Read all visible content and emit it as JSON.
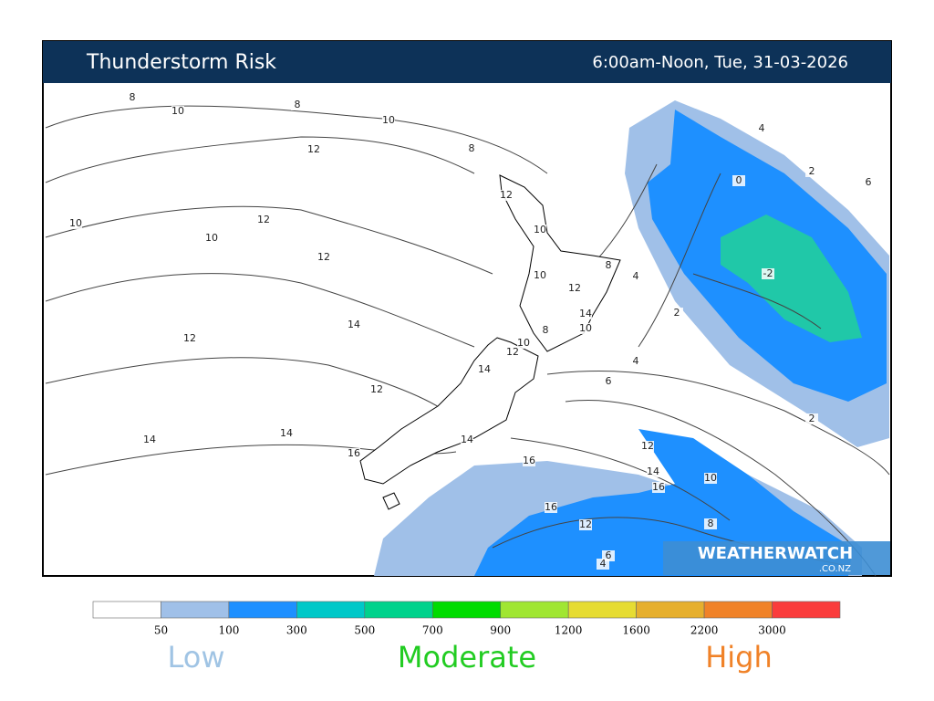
{
  "header": {
    "title": "Thunderstorm Risk",
    "valid_time": "6:00am-Noon, Tue, 31-03-2026"
  },
  "contour_labels": [
    "8",
    "10",
    "8",
    "10",
    "12",
    "8",
    "4",
    "2",
    "6",
    "0",
    "12",
    "10",
    "12",
    "10",
    "10",
    "12",
    "-2",
    "8",
    "4",
    "10",
    "12",
    "14",
    "2",
    "14",
    "8",
    "10",
    "12",
    "10",
    "12",
    "14",
    "4",
    "6",
    "12",
    "2",
    "14",
    "14",
    "14",
    "12",
    "16",
    "16",
    "14",
    "10",
    "16",
    "16",
    "12",
    "8",
    "6",
    "4"
  ],
  "logo": {
    "name": "WEATHERWATCH",
    "domain": ".CO.NZ"
  },
  "colorbar": {
    "ticks": [
      50,
      100,
      300,
      500,
      700,
      900,
      1200,
      1600,
      2200,
      3000
    ],
    "colors": [
      "#ffffff",
      "#a0c0e8",
      "#1e90ff",
      "#00c8c8",
      "#00d28c",
      "#00dc00",
      "#a0e632",
      "#e6dc32",
      "#e6af2d",
      "#f08228",
      "#fa3c3c"
    ]
  },
  "scale_labels": [
    {
      "text": "Low",
      "color": "#a0c4e4"
    },
    {
      "text": "Moderate",
      "color": "#22cc22"
    },
    {
      "text": "High",
      "color": "#f08228"
    }
  ]
}
